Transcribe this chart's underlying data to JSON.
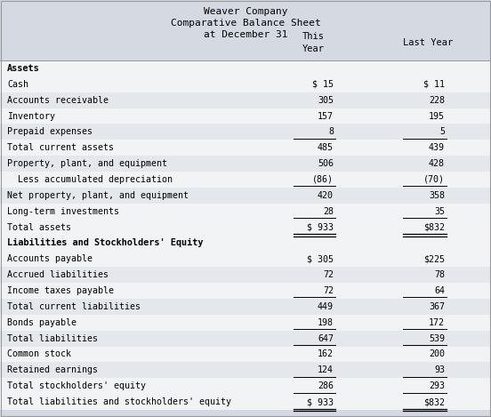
{
  "title_lines": [
    "Weaver Company",
    "Comparative Balance Sheet",
    "at December 31"
  ],
  "header_bg": "#d4d9e2",
  "row_bg_alt": "#e8eaef",
  "row_bg_main": "#f0f1f4",
  "table_bg": "#f5f5f7",
  "bottom_bg": "#d4d9e2",
  "border_color": "#aaaaaa",
  "rows": [
    {
      "label": "Assets",
      "this_year": "",
      "last_year": "",
      "bold": true,
      "line_below": false,
      "double_below": false,
      "shade": false
    },
    {
      "label": "Cash",
      "this_year": "$ 15",
      "last_year": "$ 11",
      "bold": false,
      "line_below": false,
      "double_below": false,
      "shade": false
    },
    {
      "label": "Accounts receivable",
      "this_year": "305",
      "last_year": "228",
      "bold": false,
      "line_below": false,
      "double_below": false,
      "shade": true
    },
    {
      "label": "Inventory",
      "this_year": "157",
      "last_year": "195",
      "bold": false,
      "line_below": false,
      "double_below": false,
      "shade": false
    },
    {
      "label": "Prepaid expenses",
      "this_year": "8",
      "last_year": "5",
      "bold": false,
      "line_below": true,
      "double_below": false,
      "shade": true
    },
    {
      "label": "Total current assets",
      "this_year": "485",
      "last_year": "439",
      "bold": false,
      "line_below": false,
      "double_below": false,
      "shade": false
    },
    {
      "label": "Property, plant, and equipment",
      "this_year": "506",
      "last_year": "428",
      "bold": false,
      "line_below": false,
      "double_below": false,
      "shade": true
    },
    {
      "label": "  Less accumulated depreciation",
      "this_year": "(86)",
      "last_year": "(70)",
      "bold": false,
      "line_below": true,
      "double_below": false,
      "shade": false
    },
    {
      "label": "Net property, plant, and equipment",
      "this_year": "420",
      "last_year": "358",
      "bold": false,
      "line_below": false,
      "double_below": false,
      "shade": true
    },
    {
      "label": "Long-term investments",
      "this_year": "28",
      "last_year": "35",
      "bold": false,
      "line_below": true,
      "double_below": false,
      "shade": false
    },
    {
      "label": "Total assets",
      "this_year": "$ 933",
      "last_year": "$832",
      "bold": false,
      "line_below": false,
      "double_below": true,
      "shade": false
    },
    {
      "label": "Liabilities and Stockholders' Equity",
      "this_year": "",
      "last_year": "",
      "bold": true,
      "line_below": false,
      "double_below": false,
      "shade": false
    },
    {
      "label": "Accounts payable",
      "this_year": "$ 305",
      "last_year": "$225",
      "bold": false,
      "line_below": false,
      "double_below": false,
      "shade": false
    },
    {
      "label": "Accrued liabilities",
      "this_year": "72",
      "last_year": "78",
      "bold": false,
      "line_below": false,
      "double_below": false,
      "shade": true
    },
    {
      "label": "Income taxes payable",
      "this_year": "72",
      "last_year": "64",
      "bold": false,
      "line_below": true,
      "double_below": false,
      "shade": false
    },
    {
      "label": "Total current liabilities",
      "this_year": "449",
      "last_year": "367",
      "bold": false,
      "line_below": false,
      "double_below": false,
      "shade": true
    },
    {
      "label": "Bonds payable",
      "this_year": "198",
      "last_year": "172",
      "bold": false,
      "line_below": true,
      "double_below": false,
      "shade": false
    },
    {
      "label": "Total liabilities",
      "this_year": "647",
      "last_year": "539",
      "bold": false,
      "line_below": true,
      "double_below": false,
      "shade": true
    },
    {
      "label": "Common stock",
      "this_year": "162",
      "last_year": "200",
      "bold": false,
      "line_below": false,
      "double_below": false,
      "shade": false
    },
    {
      "label": "Retained earnings",
      "this_year": "124",
      "last_year": "93",
      "bold": false,
      "line_below": true,
      "double_below": false,
      "shade": true
    },
    {
      "label": "Total stockholders' equity",
      "this_year": "286",
      "last_year": "293",
      "bold": false,
      "line_below": true,
      "double_below": false,
      "shade": false
    },
    {
      "label": "Total liabilities and stockholders' equity",
      "this_year": "$ 933",
      "last_year": "$832",
      "bold": false,
      "line_below": false,
      "double_below": true,
      "shade": false
    }
  ]
}
